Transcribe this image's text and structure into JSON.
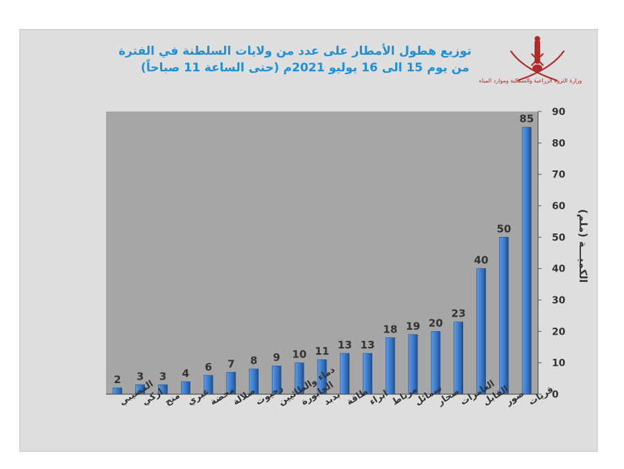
{
  "title_line1": "توزيع هطول الأمطار على عدد من ولايات السلطنة في الفترة",
  "title_line2": "من يوم 15 الى 16 يوليو 2021م (حتى الساعة 11 صباحاً)",
  "ministry": "وزارة الثروة الزراعية والسمكية وموارد المياه",
  "colors": {
    "bar": "#3a78c9",
    "plot_bg": "#a6a6a6",
    "panel_bg": "#dedede",
    "title": "#1f8fd6",
    "logo": "#b02a2a"
  },
  "chart_data": {
    "type": "bar",
    "categories": [
      "المضيبي",
      "ازكي",
      "منح",
      "عبري",
      "محضة",
      "صلالة",
      "رخيوت",
      "دماء والطائيين",
      "الخابورة",
      "بدبد",
      "طاقة",
      "ابراء",
      "مرباط",
      "سمائل",
      "صحار",
      "العامرات",
      "القابل",
      "صور",
      "قريات"
    ],
    "values": [
      2,
      3,
      3,
      4,
      6,
      7,
      8,
      9,
      10,
      11,
      13,
      13,
      18,
      19,
      20,
      23,
      40,
      50,
      85
    ],
    "ylabel": "الكميـــة (ملم)",
    "ylim": [
      0,
      90
    ],
    "yticks": [
      0,
      10,
      20,
      30,
      40,
      50,
      60,
      70,
      80,
      90
    ],
    "y_axis_side": "right",
    "grid": false,
    "legend": "none"
  }
}
